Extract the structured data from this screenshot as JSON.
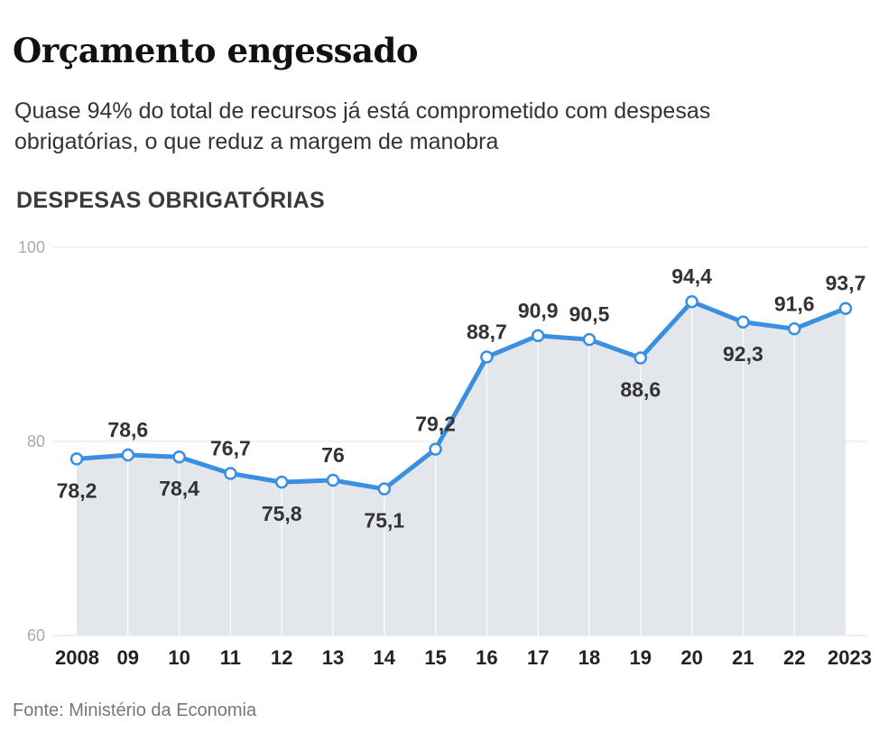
{
  "header": {
    "title": "Orçamento engessado",
    "subtitle": "Quase 94% do total de recursos já está comprometido com despesas obrigatórias, o que reduz a margem de manobra"
  },
  "section_label": "DESPESAS OBRIGATÓRIAS",
  "source": "Fonte: Ministério da Economia",
  "chart_data": {
    "type": "area",
    "title": "DESPESAS OBRIGATÓRIAS",
    "x": [
      "2008",
      "09",
      "10",
      "11",
      "12",
      "13",
      "14",
      "15",
      "16",
      "17",
      "18",
      "19",
      "20",
      "21",
      "22",
      "2023"
    ],
    "values": [
      78.2,
      78.6,
      78.4,
      76.7,
      75.8,
      76,
      75.1,
      79.2,
      88.7,
      90.9,
      90.5,
      88.6,
      94.4,
      92.3,
      91.6,
      93.7
    ],
    "labels": [
      "78,2",
      "78,6",
      "78,4",
      "76,7",
      "75,8",
      "76",
      "75,1",
      "79,2",
      "88,7",
      "90,9",
      "90,5",
      "88,6",
      "94,4",
      "92,3",
      "91,6",
      "93,7"
    ],
    "label_side": [
      "below",
      "above",
      "below",
      "above",
      "below",
      "above",
      "below",
      "above",
      "above",
      "above",
      "above",
      "below",
      "above",
      "below",
      "above",
      "above"
    ],
    "yticks": [
      {
        "value": 60,
        "label": "60"
      },
      {
        "value": 80,
        "label": "80"
      },
      {
        "value": 100,
        "label": "100"
      }
    ],
    "ylim": [
      60,
      100
    ],
    "grid": true,
    "colors": {
      "line": "#3a8fe0",
      "area": "#e3e7eb",
      "grid": "#e4e4e4",
      "vertical_grid": "#ffffff",
      "marker_fill": "#ffffff"
    }
  }
}
